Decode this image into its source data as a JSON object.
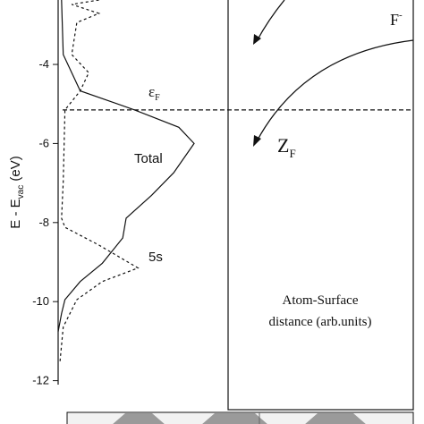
{
  "chart_data": {
    "type": "line",
    "y_label": {
      "main": "E - E",
      "sub": "vac",
      "unit": " (eV)"
    },
    "ylim": [
      -12.1,
      -2.37
    ],
    "yticks": [
      -4,
      -6,
      -8,
      -10,
      -12
    ],
    "xlim": [
      0,
      1
    ],
    "fermi_level": -5.15,
    "fermi_label": {
      "main": "ε",
      "sub": "F"
    },
    "series": [
      {
        "name": "Total",
        "color": "#111111",
        "dash": false,
        "x": [
          0.02,
          0.03,
          0.13,
          0.45,
          0.71,
          0.8,
          0.68,
          0.55,
          0.4,
          0.38,
          0.26,
          0.13,
          0.04,
          0.02,
          0.0
        ],
        "values": [
          -2.37,
          -3.75,
          -4.67,
          -5.15,
          -5.59,
          -6.0,
          -6.74,
          -7.31,
          -7.89,
          -8.39,
          -9.03,
          -9.49,
          -9.95,
          -10.3,
          -10.76
        ]
      },
      {
        "name": "5s",
        "color": "#111111",
        "dash": true,
        "x": [
          0.24,
          0.08,
          0.24,
          0.11,
          0.08,
          0.18,
          0.13,
          0.04,
          0.03,
          0.02,
          0.04,
          0.24,
          0.47,
          0.26,
          0.11,
          0.03,
          0.01
        ],
        "values": [
          -2.37,
          -2.48,
          -2.71,
          -2.94,
          -3.75,
          -4.21,
          -4.67,
          -5.15,
          -6.97,
          -7.89,
          -8.12,
          -8.57,
          -9.15,
          -9.49,
          -9.95,
          -10.64,
          -11.56
        ]
      }
    ],
    "right_panel": {
      "ion": {
        "main": "F",
        "sup": "-"
      },
      "level": {
        "main": "Z",
        "sub": "F"
      },
      "x_label_line1": "Atom-Surface",
      "x_label_line2": "distance (arb.units)"
    }
  }
}
